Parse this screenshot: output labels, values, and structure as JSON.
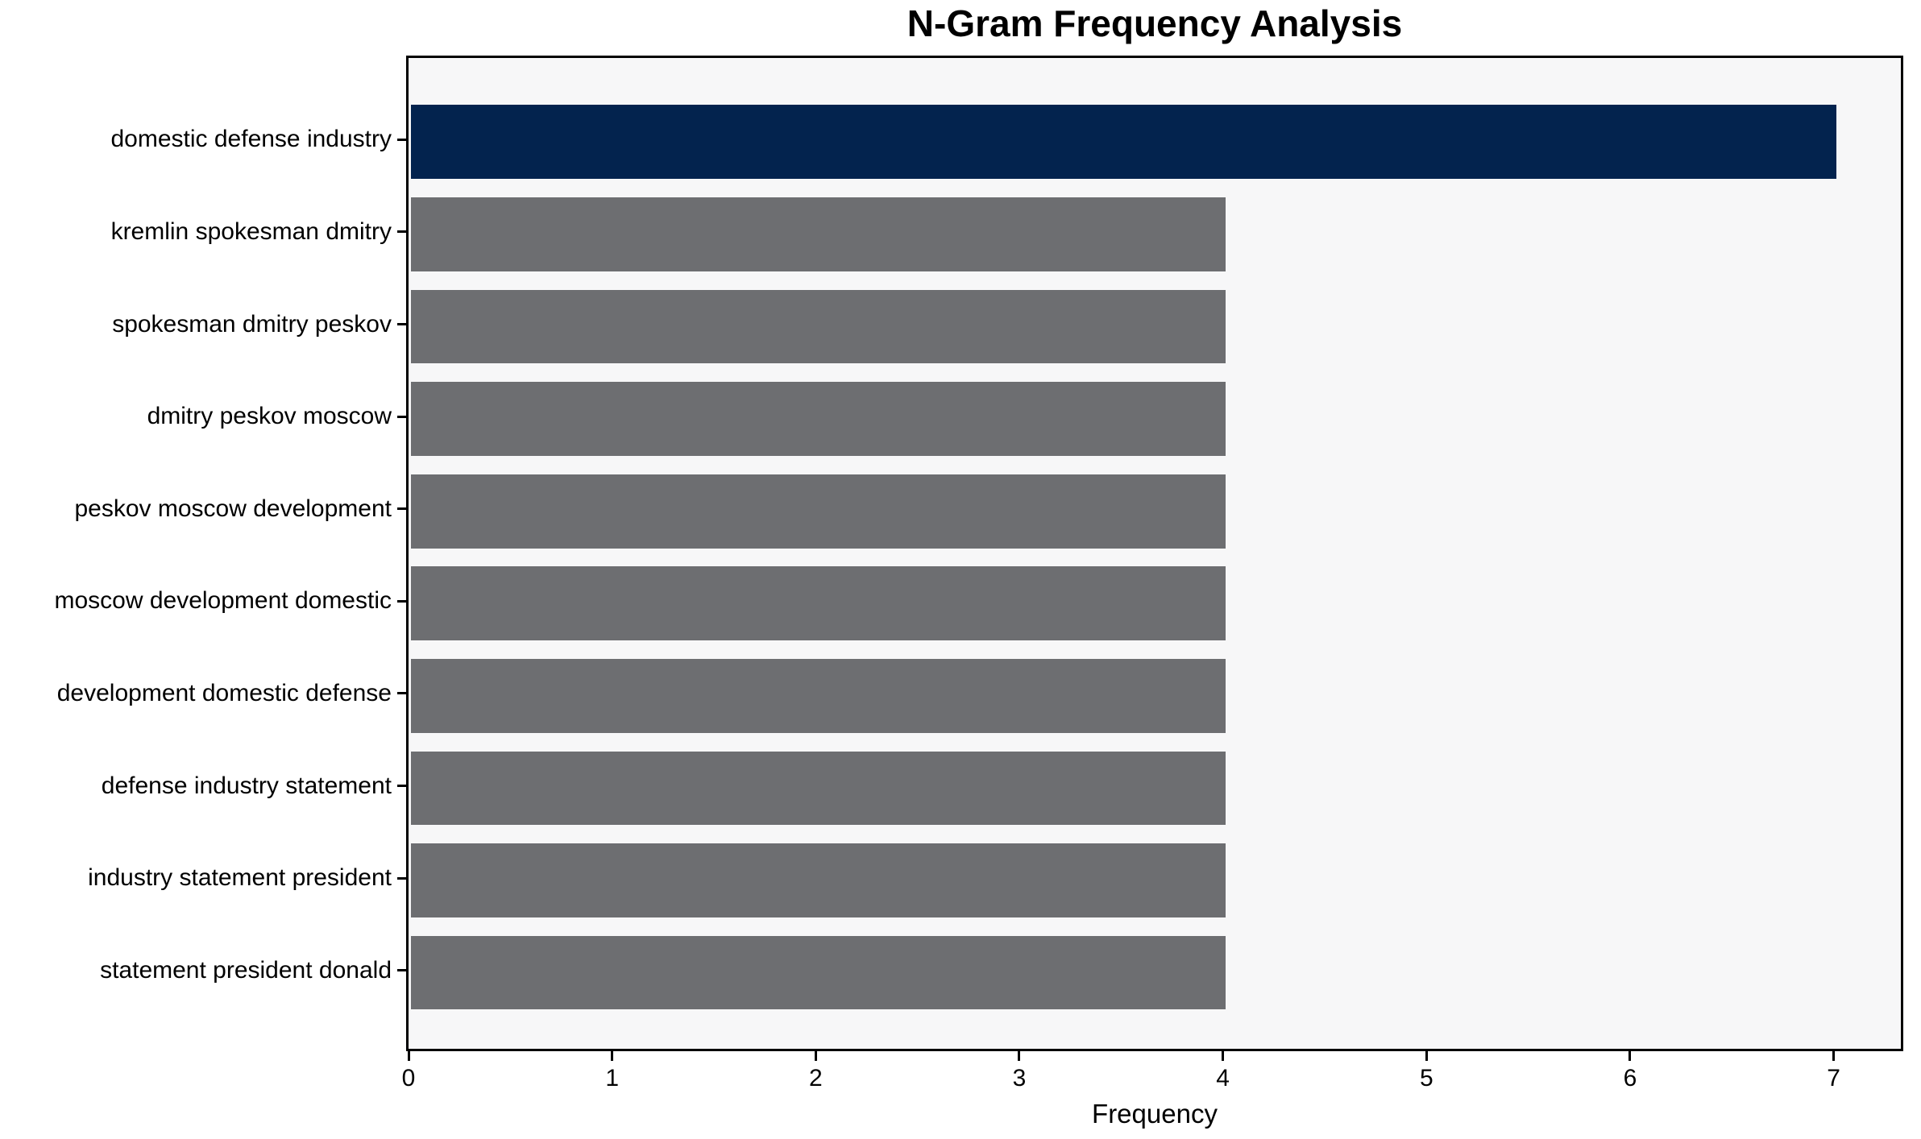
{
  "chart_data": {
    "type": "bar",
    "orientation": "horizontal",
    "title": "N-Gram Frequency Analysis",
    "xlabel": "Frequency",
    "ylabel": "",
    "categories": [
      "domestic defense industry",
      "kremlin spokesman dmitry",
      "spokesman dmitry peskov",
      "dmitry peskov moscow",
      "peskov moscow development",
      "moscow development domestic",
      "development domestic defense",
      "defense industry statement",
      "industry statement president",
      "statement president donald"
    ],
    "values": [
      7,
      4,
      4,
      4,
      4,
      4,
      4,
      4,
      4,
      4
    ],
    "xlim": [
      0,
      7.33
    ],
    "xticks": [
      0,
      1,
      2,
      3,
      4,
      5,
      6,
      7
    ],
    "grid": false,
    "legend": "none",
    "bar_colors": {
      "highlight_index": 0,
      "highlight": "#03234e",
      "default": "#6d6e71"
    },
    "style": {
      "plot_bg": "#f7f7f8",
      "figure_bg": "#ffffff",
      "spine_color": "#000000",
      "text_color": "#000000"
    }
  }
}
